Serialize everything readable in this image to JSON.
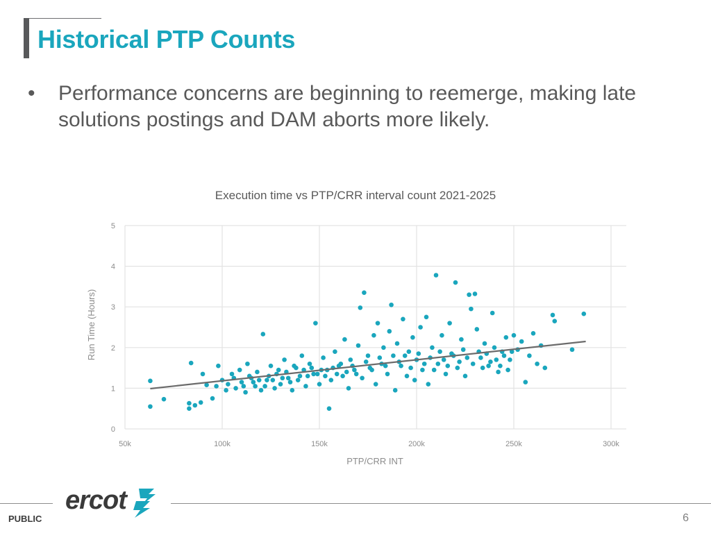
{
  "slide": {
    "title": "Historical PTP Counts",
    "bullets": [
      "Performance concerns are beginning to reemerge, making late solutions postings and DAM aborts more likely."
    ],
    "bullet_symbol": "•"
  },
  "chart_data": {
    "type": "scatter",
    "title": "Execution time vs PTP/CRR interval count 2021-2025",
    "xlabel": "PTP/CRR INT",
    "ylabel": "Run Time (Hours)",
    "xlim": [
      50000,
      300000
    ],
    "ylim": [
      0,
      5
    ],
    "xticks": [
      50000,
      100000,
      150000,
      200000,
      250000,
      300000
    ],
    "xtick_labels": [
      "50k",
      "100k",
      "150k",
      "200k",
      "250k",
      "300k"
    ],
    "yticks": [
      0,
      1,
      2,
      3,
      4,
      5
    ],
    "ytick_labels": [
      "0",
      "1",
      "2",
      "3",
      "4",
      "5"
    ],
    "grid": true,
    "legend": "none",
    "point_color": "#1aa6bd",
    "trend_color": "#6b6b6b",
    "trendline": {
      "x": [
        63000,
        287000
      ],
      "y": [
        0.99,
        2.15
      ]
    },
    "points": [
      [
        63000,
        1.18
      ],
      [
        63000,
        0.55
      ],
      [
        70000,
        0.73
      ],
      [
        83000,
        0.63
      ],
      [
        83000,
        0.5
      ],
      [
        84000,
        1.62
      ],
      [
        86000,
        0.58
      ],
      [
        89000,
        0.65
      ],
      [
        95000,
        0.75
      ],
      [
        90000,
        1.35
      ],
      [
        92000,
        1.08
      ],
      [
        97000,
        1.05
      ],
      [
        98000,
        1.55
      ],
      [
        100000,
        1.2
      ],
      [
        102000,
        0.95
      ],
      [
        105000,
        1.35
      ],
      [
        107000,
        1.0
      ],
      [
        109000,
        1.45
      ],
      [
        110000,
        1.15
      ],
      [
        112000,
        0.9
      ],
      [
        113000,
        1.6
      ],
      [
        115000,
        1.25
      ],
      [
        117000,
        1.05
      ],
      [
        118000,
        1.4
      ],
      [
        120000,
        0.95
      ],
      [
        121000,
        2.33
      ],
      [
        123000,
        1.2
      ],
      [
        125000,
        1.55
      ],
      [
        127000,
        1.0
      ],
      [
        128000,
        1.35
      ],
      [
        130000,
        1.1
      ],
      [
        132000,
        1.7
      ],
      [
        134000,
        1.25
      ],
      [
        136000,
        0.95
      ],
      [
        138000,
        1.5
      ],
      [
        140000,
        1.3
      ],
      [
        141000,
        1.8
      ],
      [
        143000,
        1.05
      ],
      [
        145000,
        1.6
      ],
      [
        147000,
        1.35
      ],
      [
        148000,
        2.6
      ],
      [
        150000,
        1.1
      ],
      [
        152000,
        1.75
      ],
      [
        154000,
        1.45
      ],
      [
        155000,
        0.5
      ],
      [
        156000,
        1.2
      ],
      [
        158000,
        1.9
      ],
      [
        160000,
        1.55
      ],
      [
        162000,
        1.3
      ],
      [
        163000,
        2.2
      ],
      [
        165000,
        1.0
      ],
      [
        166000,
        1.7
      ],
      [
        168000,
        1.45
      ],
      [
        170000,
        2.05
      ],
      [
        171000,
        2.98
      ],
      [
        172000,
        1.25
      ],
      [
        173000,
        3.35
      ],
      [
        175000,
        1.8
      ],
      [
        176000,
        1.5
      ],
      [
        178000,
        2.3
      ],
      [
        179000,
        1.1
      ],
      [
        180000,
        2.6
      ],
      [
        182000,
        1.6
      ],
      [
        183000,
        2.0
      ],
      [
        185000,
        1.35
      ],
      [
        186000,
        2.4
      ],
      [
        187000,
        3.05
      ],
      [
        188000,
        1.8
      ],
      [
        189000,
        0.95
      ],
      [
        190000,
        2.1
      ],
      [
        192000,
        1.55
      ],
      [
        193000,
        2.7
      ],
      [
        195000,
        1.3
      ],
      [
        196000,
        1.9
      ],
      [
        198000,
        2.25
      ],
      [
        199000,
        1.2
      ],
      [
        200000,
        1.7
      ],
      [
        202000,
        2.5
      ],
      [
        203000,
        1.45
      ],
      [
        205000,
        2.75
      ],
      [
        206000,
        1.1
      ],
      [
        208000,
        2.0
      ],
      [
        210000,
        3.78
      ],
      [
        211000,
        1.6
      ],
      [
        213000,
        2.3
      ],
      [
        215000,
        1.35
      ],
      [
        217000,
        2.6
      ],
      [
        218000,
        1.85
      ],
      [
        220000,
        3.6
      ],
      [
        221000,
        1.5
      ],
      [
        223000,
        2.2
      ],
      [
        225000,
        1.3
      ],
      [
        227000,
        3.3
      ],
      [
        228000,
        2.95
      ],
      [
        230000,
        3.32
      ],
      [
        231000,
        2.45
      ],
      [
        233000,
        1.75
      ],
      [
        235000,
        2.1
      ],
      [
        237000,
        1.55
      ],
      [
        239000,
        2.85
      ],
      [
        240000,
        2.0
      ],
      [
        242000,
        1.4
      ],
      [
        244000,
        1.9
      ],
      [
        246000,
        2.25
      ],
      [
        248000,
        1.7
      ],
      [
        250000,
        2.3
      ],
      [
        252000,
        1.95
      ],
      [
        254000,
        2.15
      ],
      [
        256000,
        1.15
      ],
      [
        258000,
        1.8
      ],
      [
        260000,
        2.35
      ],
      [
        262000,
        1.6
      ],
      [
        264000,
        2.05
      ],
      [
        266000,
        1.5
      ],
      [
        270000,
        2.8
      ],
      [
        271000,
        2.65
      ],
      [
        280000,
        1.95
      ],
      [
        286000,
        2.83
      ],
      [
        103000,
        1.1
      ],
      [
        106000,
        1.25
      ],
      [
        111000,
        1.05
      ],
      [
        114000,
        1.3
      ],
      [
        116000,
        1.15
      ],
      [
        119000,
        1.2
      ],
      [
        122000,
        1.05
      ],
      [
        124000,
        1.3
      ],
      [
        126000,
        1.2
      ],
      [
        129000,
        1.45
      ],
      [
        131000,
        1.25
      ],
      [
        133000,
        1.4
      ],
      [
        135000,
        1.15
      ],
      [
        137000,
        1.55
      ],
      [
        139000,
        1.2
      ],
      [
        142000,
        1.45
      ],
      [
        144000,
        1.3
      ],
      [
        146000,
        1.5
      ],
      [
        149000,
        1.35
      ],
      [
        151000,
        1.45
      ],
      [
        153000,
        1.3
      ],
      [
        157000,
        1.5
      ],
      [
        159000,
        1.35
      ],
      [
        161000,
        1.6
      ],
      [
        164000,
        1.4
      ],
      [
        167000,
        1.55
      ],
      [
        169000,
        1.35
      ],
      [
        174000,
        1.65
      ],
      [
        177000,
        1.45
      ],
      [
        181000,
        1.75
      ],
      [
        184000,
        1.55
      ],
      [
        191000,
        1.65
      ],
      [
        194000,
        1.8
      ],
      [
        197000,
        1.5
      ],
      [
        201000,
        1.85
      ],
      [
        204000,
        1.6
      ],
      [
        207000,
        1.75
      ],
      [
        209000,
        1.45
      ],
      [
        212000,
        1.9
      ],
      [
        214000,
        1.7
      ],
      [
        216000,
        1.55
      ],
      [
        219000,
        1.8
      ],
      [
        222000,
        1.65
      ],
      [
        224000,
        1.95
      ],
      [
        226000,
        1.75
      ],
      [
        229000,
        1.6
      ],
      [
        232000,
        1.9
      ],
      [
        234000,
        1.5
      ],
      [
        236000,
        1.85
      ],
      [
        238000,
        1.65
      ],
      [
        241000,
        1.7
      ],
      [
        243000,
        1.55
      ],
      [
        245000,
        1.8
      ],
      [
        247000,
        1.45
      ],
      [
        249000,
        1.9
      ]
    ]
  },
  "footer": {
    "classification": "PUBLIC",
    "page_number": "6",
    "logo_text": "ercot"
  }
}
